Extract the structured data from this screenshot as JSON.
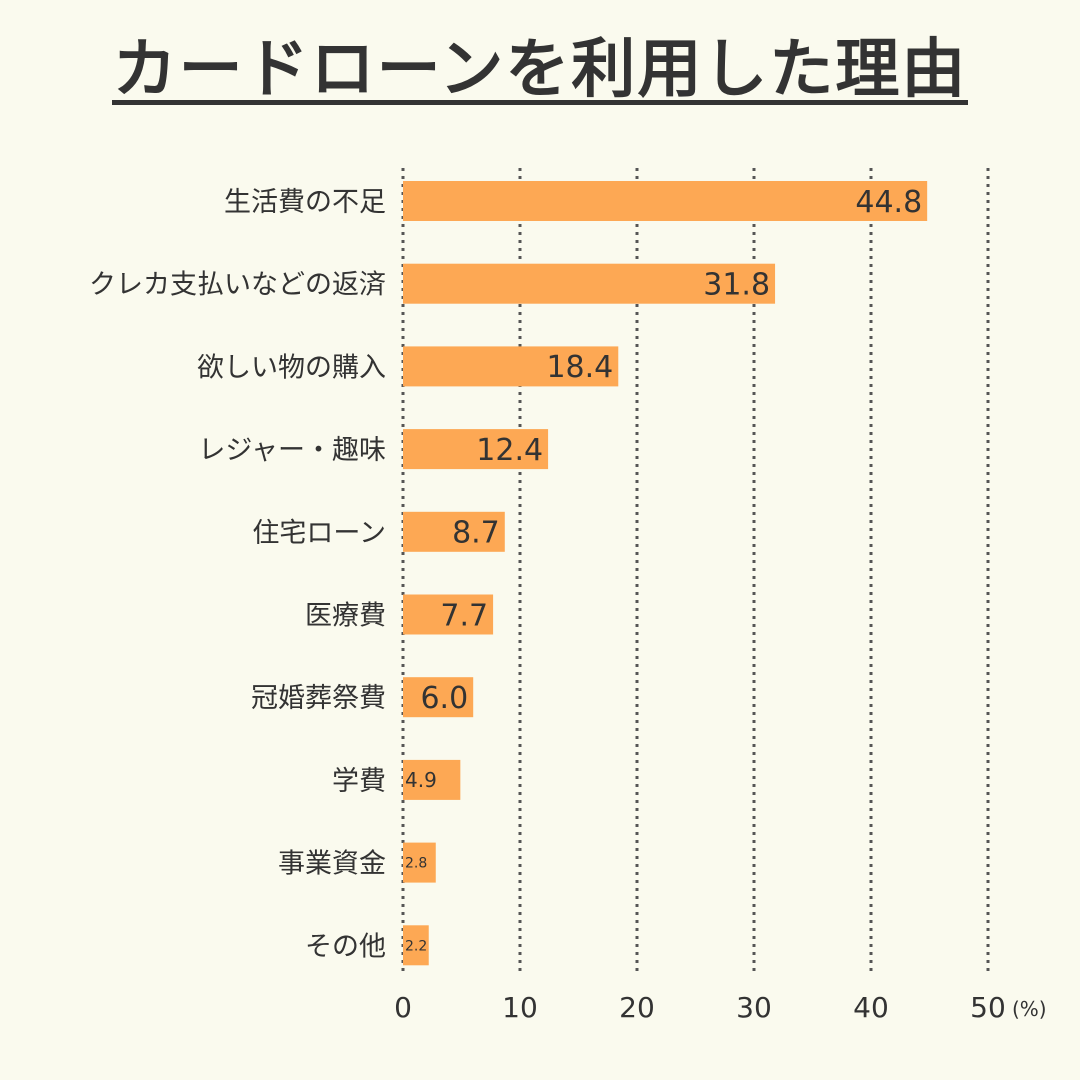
{
  "title": "カードローンを利用した理由",
  "colors": {
    "background": "#fafaee",
    "bar": "#fda854",
    "text": "#333333",
    "grid": "#555555"
  },
  "chart_data": {
    "type": "bar",
    "orientation": "horizontal",
    "categories": [
      "生活費の不足",
      "クレカ支払いなどの返済",
      "欲しい物の購入",
      "レジャー・趣味",
      "住宅ローン",
      "医療費",
      "冠婚葬祭費",
      "学費",
      "事業資金",
      "その他"
    ],
    "values": [
      44.8,
      31.8,
      18.4,
      12.4,
      8.7,
      7.7,
      6.0,
      4.9,
      2.8,
      2.2
    ],
    "value_labels": [
      "44.8",
      "31.8",
      "18.4",
      "12.4",
      "8.7",
      "7.7",
      "6.0",
      "4.9",
      "2.8",
      "2.2"
    ],
    "xlim": [
      0,
      50
    ],
    "xticks": [
      0,
      10,
      20,
      30,
      40,
      50
    ],
    "xtick_labels": [
      "0",
      "10",
      "20",
      "30",
      "40",
      "50"
    ],
    "x_unit": "(%)",
    "grid": "vertical dotted"
  }
}
